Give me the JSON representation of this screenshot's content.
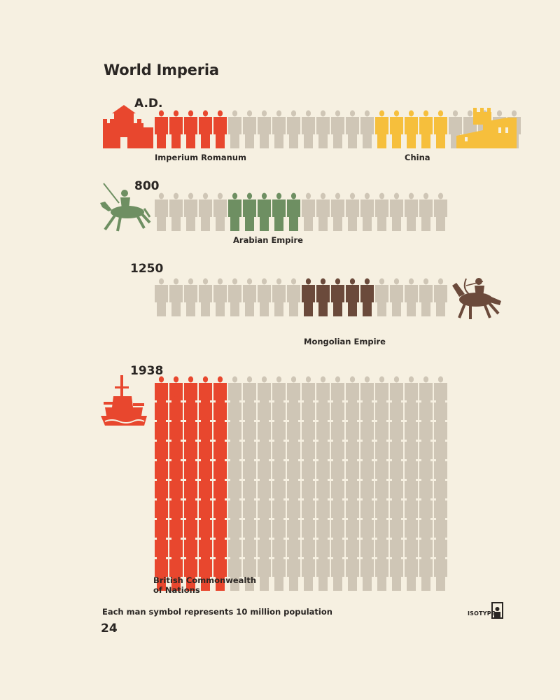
{
  "title": "World Imperia",
  "footnote": "Each man symbol represents 10 million population",
  "page_number": "24",
  "logo_text": "ISOTYPE",
  "colors": {
    "background": "#f6f0e1",
    "neutral": "#cfc6b6",
    "roman": "#e8472e",
    "china": "#f6bf3c",
    "arabian": "#6e8f62",
    "mongolian": "#6b4a3b",
    "british": "#e8472e"
  },
  "icons": {
    "roman": "fortress-icon",
    "china": "great-wall-icon",
    "arabian": "camel-rider-icon",
    "mongolian": "horse-archer-icon",
    "british": "battleship-icon"
  },
  "chart_data": {
    "type": "pictogram",
    "unit": "Each man symbol represents 10 million population",
    "rows": [
      {
        "era": "A.D.",
        "total_symbols": 25,
        "empires": [
          {
            "name": "Imperium Romanum",
            "start_index": 0,
            "symbols": 5,
            "color": "#e8472e"
          },
          {
            "name": "China",
            "start_index": 15,
            "symbols": 5,
            "color": "#f6bf3c"
          }
        ]
      },
      {
        "era": "800",
        "total_symbols": 20,
        "empires": [
          {
            "name": "Arabian Empire",
            "start_index": 5,
            "symbols": 5,
            "color": "#6e8f62"
          }
        ]
      },
      {
        "era": "1250",
        "total_symbols": 20,
        "empires": [
          {
            "name": "Mongolian Empire",
            "start_index": 10,
            "symbols": 5,
            "color": "#6b4a3b"
          }
        ]
      },
      {
        "era": "1938",
        "total_symbols": 200,
        "empires": [
          {
            "name": "British Commonwealth of Nations",
            "start_index": 0,
            "symbols": 50,
            "color": "#e8472e"
          }
        ]
      }
    ],
    "labels": {
      "roman": "Imperium Romanum",
      "china": "China",
      "arabian": "Arabian Empire",
      "mongolian": "Mongolian Empire",
      "british_line1": "British Commonwealth",
      "british_line2": "of Nations"
    }
  }
}
